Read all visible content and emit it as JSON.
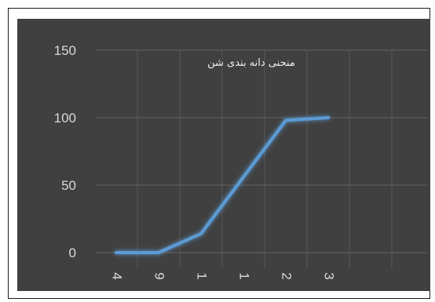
{
  "chart_data": {
    "type": "line",
    "categories": [
      "4",
      "9",
      "1",
      "1",
      "2",
      "3"
    ],
    "series": [
      {
        "name": "منحنی دانه بندی شن",
        "values": [
          0,
          0,
          14,
          56,
          98,
          100
        ]
      }
    ],
    "ylim": [
      0,
      150
    ],
    "yticks": [
      0,
      50,
      100,
      150
    ],
    "grid": true,
    "legend_position": "top",
    "colors": {
      "background": "#404040",
      "line": "#5b9bd5",
      "gridline": "#595959",
      "text": "#d9d9d9"
    }
  }
}
